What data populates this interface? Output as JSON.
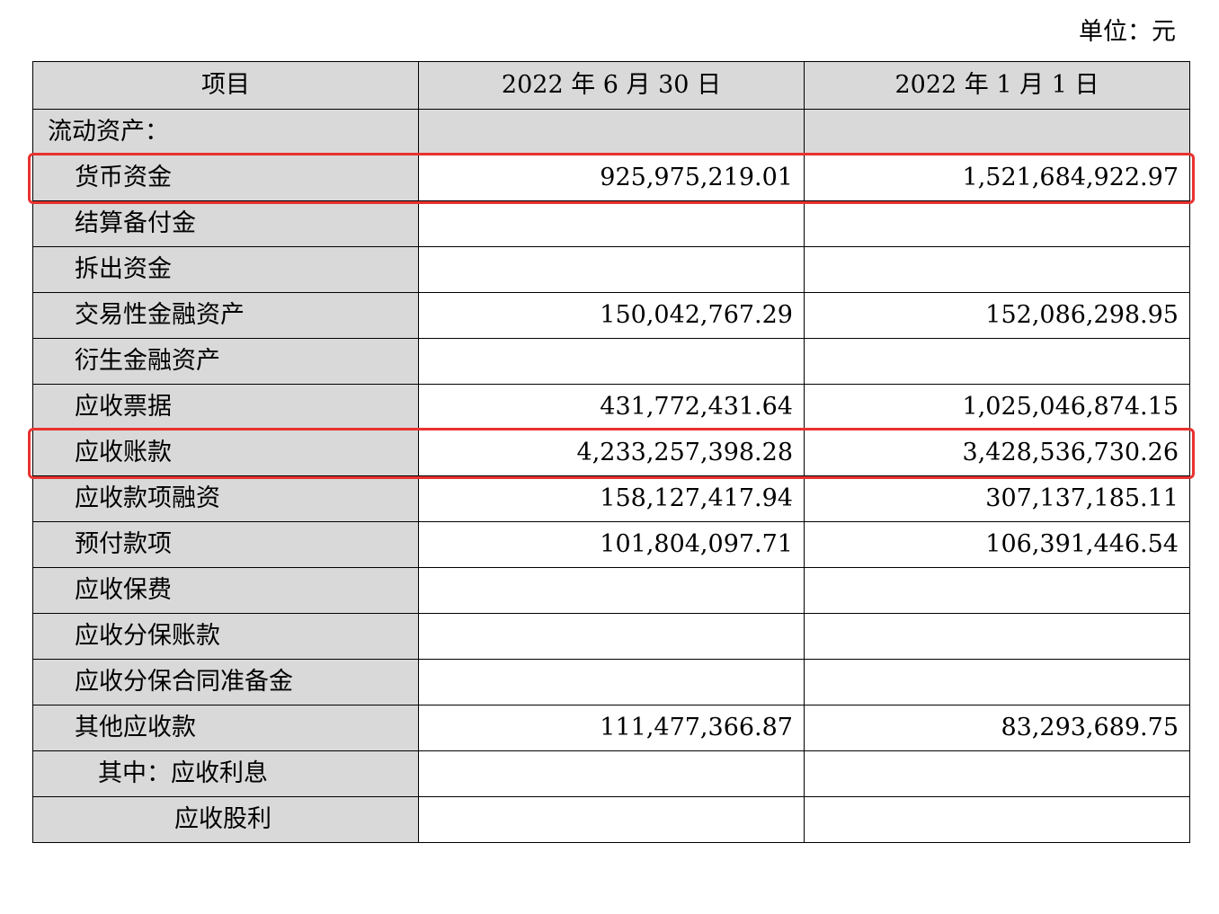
{
  "unit": "单位：元",
  "table": {
    "headers": [
      "项目",
      "2022 年 6 月 30 日",
      "2022 年 1 月 1 日"
    ],
    "rows": [
      {
        "item": "流动资产：",
        "v1": "",
        "v2": "",
        "indent": 0,
        "section": true
      },
      {
        "item": "货币资金",
        "v1": "925,975,219.01",
        "v2": "1,521,684,922.97",
        "indent": 1,
        "highlighted": true
      },
      {
        "item": "结算备付金",
        "v1": "",
        "v2": "",
        "indent": 1
      },
      {
        "item": "拆出资金",
        "v1": "",
        "v2": "",
        "indent": 1
      },
      {
        "item": "交易性金融资产",
        "v1": "150,042,767.29",
        "v2": "152,086,298.95",
        "indent": 1
      },
      {
        "item": "衍生金融资产",
        "v1": "",
        "v2": "",
        "indent": 1
      },
      {
        "item": "应收票据",
        "v1": "431,772,431.64",
        "v2": "1,025,046,874.15",
        "indent": 1
      },
      {
        "item": "应收账款",
        "v1": "4,233,257,398.28",
        "v2": "3,428,536,730.26",
        "indent": 1,
        "highlighted": true
      },
      {
        "item": "应收款项融资",
        "v1": "158,127,417.94",
        "v2": "307,137,185.11",
        "indent": 1
      },
      {
        "item": "预付款项",
        "v1": "101,804,097.71",
        "v2": "106,391,446.54",
        "indent": 1
      },
      {
        "item": "应收保费",
        "v1": "",
        "v2": "",
        "indent": 1
      },
      {
        "item": "应收分保账款",
        "v1": "",
        "v2": "",
        "indent": 1
      },
      {
        "item": "应收分保合同准备金",
        "v1": "",
        "v2": "",
        "indent": 1
      },
      {
        "item": "其他应收款",
        "v1": "111,477,366.87",
        "v2": "83,293,689.75",
        "indent": 1
      },
      {
        "item": "其中：应收利息",
        "v1": "",
        "v2": "",
        "indent": 2
      },
      {
        "item": "应收股利",
        "v1": "",
        "v2": "",
        "indent": 3
      }
    ]
  },
  "highlight_color": "#e8322f",
  "header_bg": "#d9d9d9"
}
